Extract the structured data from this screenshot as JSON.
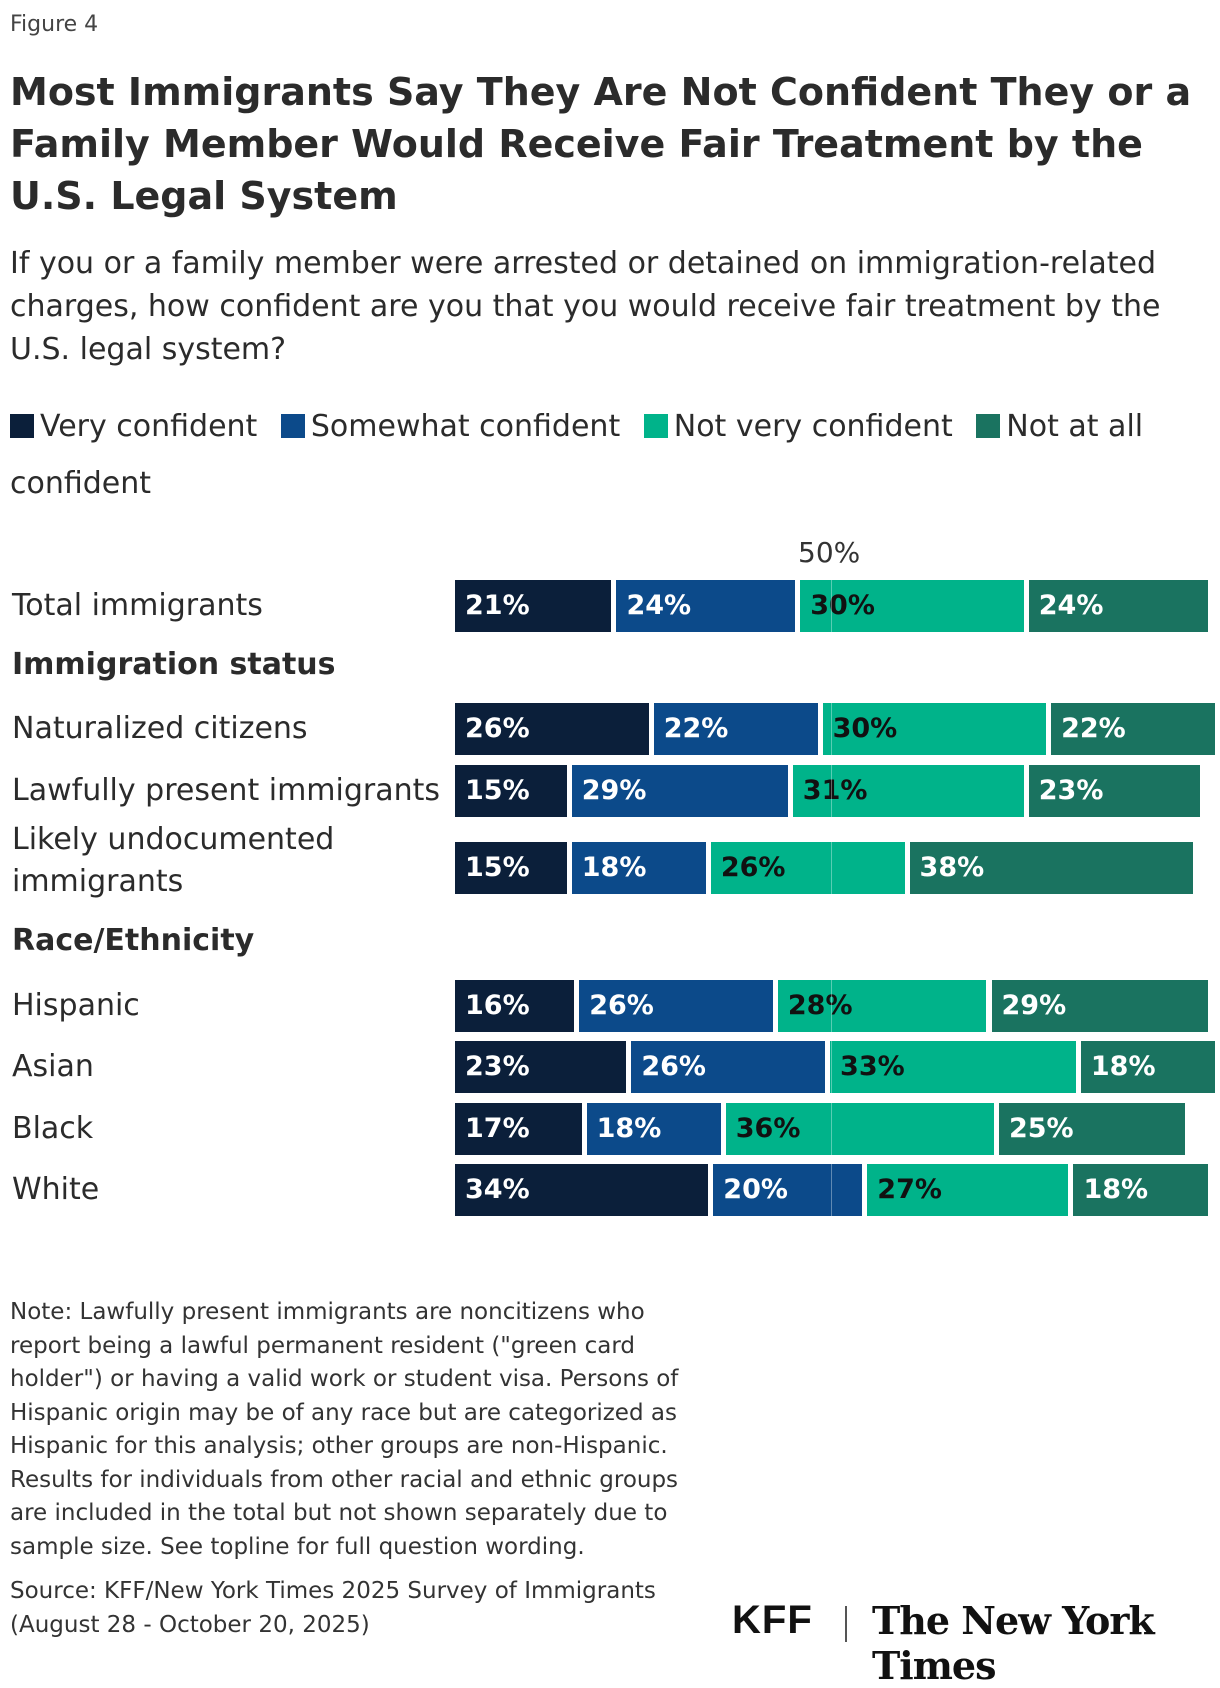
{
  "figure_label": "Figure 4",
  "chart_data": {
    "type": "bar",
    "orientation": "horizontal",
    "stacked": true,
    "title": "Most Immigrants Say They Are Not Confident They or a Family Member Would Receive Fair Treatment by the U.S. Legal System",
    "subtitle": "If you or a family member were arrested or detained on immigration-related charges, how confident are you that you would receive fair treatment by the U.S. legal system?",
    "axis_marker": "50%",
    "legend_placement": "top",
    "series": [
      {
        "name": "Very confident",
        "color": "#0b1f3a",
        "text_color": "#ffffff"
      },
      {
        "name": "Somewhat confident",
        "color": "#0c4a8a",
        "text_color": "#ffffff"
      },
      {
        "name": "Not very confident",
        "color": "#00b38a",
        "text_color": "#111111"
      },
      {
        "name": "Not at all confident",
        "color": "#1a7360",
        "text_color": "#ffffff"
      }
    ],
    "groups": [
      {
        "label": "",
        "rows": [
          {
            "label": "Total immigrants",
            "values": [
              21,
              24,
              30,
              24
            ]
          }
        ]
      },
      {
        "label": "Immigration status",
        "rows": [
          {
            "label": "Naturalized citizens",
            "values": [
              26,
              22,
              30,
              22
            ]
          },
          {
            "label": "Lawfully present immigrants",
            "values": [
              15,
              29,
              31,
              23
            ]
          },
          {
            "label": "Likely undocumented immigrants",
            "values": [
              15,
              18,
              26,
              38
            ]
          }
        ]
      },
      {
        "label": "Race/Ethnicity",
        "rows": [
          {
            "label": "Hispanic",
            "values": [
              16,
              26,
              28,
              29
            ]
          },
          {
            "label": "Asian",
            "values": [
              23,
              26,
              33,
              18
            ]
          },
          {
            "label": "Black",
            "values": [
              17,
              18,
              36,
              25
            ]
          },
          {
            "label": "White",
            "values": [
              34,
              20,
              27,
              18
            ]
          }
        ]
      }
    ]
  },
  "note": "Note: Lawfully present immigrants are noncitizens who report being a lawful permanent resident (\"green card holder\") or having a valid work or student visa. Persons of Hispanic origin may be of any race but are categorized as Hispanic for this analysis; other groups are non-Hispanic. Results for individuals from other racial and ethnic groups are included in the total but not shown separately due to sample size. See topline for full question wording.",
  "source": "Source: KFF/New York Times 2025 Survey of Immigrants (August 28 - October 20, 2025)",
  "logos": {
    "kff": "KFF",
    "nyt": "The New York Times"
  }
}
